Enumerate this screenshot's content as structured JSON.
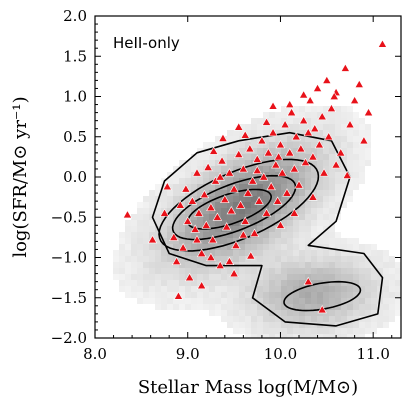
{
  "chart_data": {
    "type": "scatter",
    "annotation": "HeII-only",
    "xlabel": "Stellar Mass log(M/M⊙)",
    "ylabel": "log(SFR/M⊙ yr⁻¹)",
    "xlim": [
      8.0,
      11.3
    ],
    "ylim": [
      -2.0,
      2.0
    ],
    "x_ticks": [
      8.0,
      9.0,
      10.0,
      11.0
    ],
    "x_tick_labels": [
      "8.0",
      "9.0",
      "10.0",
      "11.0"
    ],
    "y_ticks": [
      -2.0,
      -1.5,
      -1.0,
      -0.5,
      0.0,
      0.5,
      1.0,
      1.5,
      2.0
    ],
    "y_tick_labels": [
      "−2.0",
      "−1.5",
      "−1.0",
      "−0.5",
      "0.0",
      "0.5",
      "1.0",
      "1.5",
      "2.0"
    ],
    "grid": false,
    "background": "grayscale 2D density of the full galaxy sample",
    "contours": {
      "color": "#000000",
      "count": 4,
      "note": "density contours: bimodal star-forming sequence and quiescent cloud"
    },
    "series": [
      {
        "name": "HeII-only",
        "marker": "triangle",
        "color": "#e8121a",
        "points": [
          [
            8.35,
            -0.47
          ],
          [
            8.62,
            -0.78
          ],
          [
            8.75,
            -0.45
          ],
          [
            8.85,
            -0.75
          ],
          [
            8.88,
            -1.05
          ],
          [
            8.92,
            -0.35
          ],
          [
            8.95,
            -0.88
          ],
          [
            8.98,
            -0.15
          ],
          [
            9.0,
            -0.55
          ],
          [
            9.02,
            -1.25
          ],
          [
            9.05,
            -0.3
          ],
          [
            9.08,
            -0.65
          ],
          [
            9.1,
            0.05
          ],
          [
            9.12,
            -0.45
          ],
          [
            9.15,
            -0.95
          ],
          [
            9.18,
            -0.22
          ],
          [
            9.2,
            -0.6
          ],
          [
            9.22,
            0.12
          ],
          [
            9.25,
            -0.38
          ],
          [
            9.27,
            -0.78
          ],
          [
            9.3,
            -0.05
          ],
          [
            9.32,
            -0.5
          ],
          [
            9.35,
            -1.1
          ],
          [
            9.37,
            0.2
          ],
          [
            9.4,
            -0.28
          ],
          [
            9.42,
            -0.62
          ],
          [
            9.45,
            0.05
          ],
          [
            9.47,
            -0.42
          ],
          [
            9.5,
            -0.15
          ],
          [
            9.52,
            -0.85
          ],
          [
            9.55,
            0.28
          ],
          [
            9.57,
            -0.35
          ],
          [
            9.6,
            0.1
          ],
          [
            9.62,
            -0.55
          ],
          [
            9.65,
            -0.2
          ],
          [
            9.67,
            0.35
          ],
          [
            9.7,
            -0.05
          ],
          [
            9.72,
            -0.7
          ],
          [
            9.75,
            0.22
          ],
          [
            9.77,
            -0.3
          ],
          [
            9.8,
            0.45
          ],
          [
            9.82,
            0.0
          ],
          [
            9.85,
            -0.45
          ],
          [
            9.87,
            0.3
          ],
          [
            9.9,
            -0.12
          ],
          [
            9.92,
            0.55
          ],
          [
            9.95,
            0.15
          ],
          [
            9.97,
            -0.3
          ],
          [
            10.0,
            0.4
          ],
          [
            10.02,
            0.05
          ],
          [
            10.05,
            0.65
          ],
          [
            10.07,
            -0.2
          ],
          [
            10.1,
            0.3
          ],
          [
            10.12,
            0.8
          ],
          [
            10.15,
            0.1
          ],
          [
            10.17,
            0.5
          ],
          [
            10.2,
            -0.1
          ],
          [
            10.22,
            0.35
          ],
          [
            10.25,
            0.7
          ],
          [
            10.27,
            0.18
          ],
          [
            10.3,
            0.55
          ],
          [
            10.32,
            0.95
          ],
          [
            10.35,
            0.25
          ],
          [
            10.37,
            0.6
          ],
          [
            10.4,
            1.1
          ],
          [
            10.42,
            0.4
          ],
          [
            10.45,
            0.75
          ],
          [
            10.47,
            0.05
          ],
          [
            10.5,
            1.2
          ],
          [
            10.52,
            0.5
          ],
          [
            10.55,
            0.85
          ],
          [
            10.6,
            1.05
          ],
          [
            10.65,
            0.3
          ],
          [
            10.7,
            1.35
          ],
          [
            10.75,
            0.65
          ],
          [
            10.8,
            0.95
          ],
          [
            10.85,
            1.15
          ],
          [
            10.9,
            0.45
          ],
          [
            10.95,
            0.8
          ],
          [
            11.1,
            1.65
          ],
          [
            10.58,
            1.0
          ],
          [
            10.45,
            -1.65
          ],
          [
            10.3,
            -1.3
          ],
          [
            9.5,
            -1.2
          ],
          [
            9.38,
            0.48
          ],
          [
            9.62,
            0.52
          ],
          [
            9.85,
            0.68
          ],
          [
            10.1,
            0.9
          ],
          [
            10.25,
            1.02
          ],
          [
            8.78,
            -0.12
          ],
          [
            8.9,
            -1.48
          ],
          [
            9.15,
            -1.35
          ],
          [
            9.45,
            -1.05
          ],
          [
            9.68,
            -0.98
          ],
          [
            10.0,
            -0.6
          ],
          [
            10.15,
            -0.45
          ],
          [
            10.35,
            -0.25
          ],
          [
            10.6,
            0.15
          ],
          [
            10.72,
            0.02
          ],
          [
            9.28,
            0.32
          ],
          [
            9.55,
            0.62
          ],
          [
            9.92,
            0.88
          ],
          [
            9.1,
            -0.78
          ],
          [
            9.25,
            -1.0
          ],
          [
            9.6,
            -0.72
          ],
          [
            9.35,
            0.0
          ],
          [
            9.75,
            0.08
          ],
          [
            9.98,
            0.25
          ]
        ]
      }
    ]
  }
}
